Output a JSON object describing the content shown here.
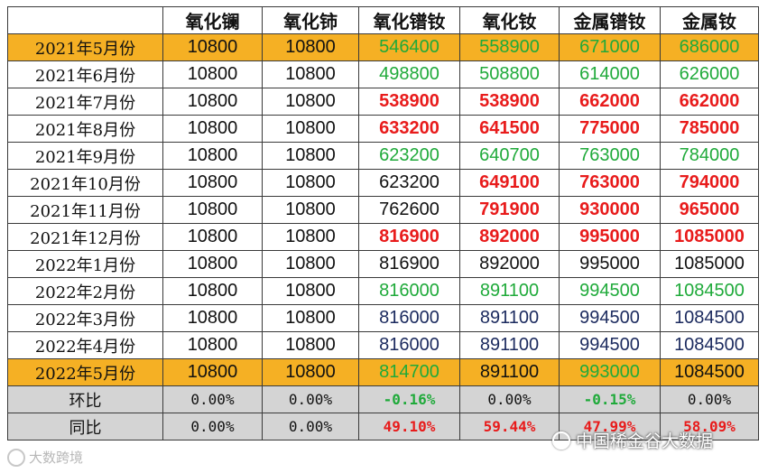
{
  "table": {
    "headers": [
      "",
      "氧化镧",
      "氧化铈",
      "氧化镨钕",
      "氧化钕",
      "金属镨钕",
      "金属钕"
    ],
    "rows": [
      {
        "label": "2021年5月份",
        "style": "hl",
        "cells": [
          {
            "v": "10800",
            "c": "black"
          },
          {
            "v": "10800",
            "c": "black"
          },
          {
            "v": "546400",
            "c": "green"
          },
          {
            "v": "558900",
            "c": "green"
          },
          {
            "v": "671000",
            "c": "green"
          },
          {
            "v": "686000",
            "c": "green"
          }
        ]
      },
      {
        "label": "2021年6月份",
        "style": "",
        "cells": [
          {
            "v": "10800",
            "c": "black"
          },
          {
            "v": "10800",
            "c": "black"
          },
          {
            "v": "498800",
            "c": "green"
          },
          {
            "v": "508800",
            "c": "green"
          },
          {
            "v": "614000",
            "c": "green"
          },
          {
            "v": "626000",
            "c": "green"
          }
        ]
      },
      {
        "label": "2021年7月份",
        "style": "",
        "cells": [
          {
            "v": "10800",
            "c": "black"
          },
          {
            "v": "10800",
            "c": "black"
          },
          {
            "v": "538900",
            "c": "red"
          },
          {
            "v": "538900",
            "c": "red"
          },
          {
            "v": "662000",
            "c": "red"
          },
          {
            "v": "662000",
            "c": "red"
          }
        ]
      },
      {
        "label": "2021年8月份",
        "style": "",
        "cells": [
          {
            "v": "10800",
            "c": "black"
          },
          {
            "v": "10800",
            "c": "black"
          },
          {
            "v": "633200",
            "c": "red"
          },
          {
            "v": "641500",
            "c": "red"
          },
          {
            "v": "775000",
            "c": "red"
          },
          {
            "v": "785000",
            "c": "red"
          }
        ]
      },
      {
        "label": "2021年9月份",
        "style": "",
        "cells": [
          {
            "v": "10800",
            "c": "black"
          },
          {
            "v": "10800",
            "c": "black"
          },
          {
            "v": "623200",
            "c": "green"
          },
          {
            "v": "640700",
            "c": "green"
          },
          {
            "v": "763000",
            "c": "green"
          },
          {
            "v": "784000",
            "c": "green"
          }
        ]
      },
      {
        "label": "2021年10月份",
        "style": "",
        "cells": [
          {
            "v": "10800",
            "c": "black"
          },
          {
            "v": "10800",
            "c": "black"
          },
          {
            "v": "623200",
            "c": "black"
          },
          {
            "v": "649100",
            "c": "red"
          },
          {
            "v": "763000",
            "c": "red"
          },
          {
            "v": "794000",
            "c": "red"
          }
        ]
      },
      {
        "label": "2021年11月份",
        "style": "",
        "cells": [
          {
            "v": "10800",
            "c": "black"
          },
          {
            "v": "10800",
            "c": "black"
          },
          {
            "v": "762600",
            "c": "black"
          },
          {
            "v": "791900",
            "c": "red"
          },
          {
            "v": "930000",
            "c": "red"
          },
          {
            "v": "965000",
            "c": "red"
          }
        ]
      },
      {
        "label": "2021年12月份",
        "style": "",
        "cells": [
          {
            "v": "10800",
            "c": "black"
          },
          {
            "v": "10800",
            "c": "black"
          },
          {
            "v": "816900",
            "c": "red"
          },
          {
            "v": "892000",
            "c": "red"
          },
          {
            "v": "995000",
            "c": "red"
          },
          {
            "v": "1085000",
            "c": "red"
          }
        ]
      },
      {
        "label": "2022年1月份",
        "style": "",
        "cells": [
          {
            "v": "10800",
            "c": "black"
          },
          {
            "v": "10800",
            "c": "black"
          },
          {
            "v": "816900",
            "c": "black"
          },
          {
            "v": "892000",
            "c": "black"
          },
          {
            "v": "995000",
            "c": "black"
          },
          {
            "v": "1085000",
            "c": "black"
          }
        ]
      },
      {
        "label": "2022年2月份",
        "style": "",
        "cells": [
          {
            "v": "10800",
            "c": "black"
          },
          {
            "v": "10800",
            "c": "black"
          },
          {
            "v": "816000",
            "c": "green"
          },
          {
            "v": "891100",
            "c": "green"
          },
          {
            "v": "994500",
            "c": "green"
          },
          {
            "v": "1084500",
            "c": "green"
          }
        ]
      },
      {
        "label": "2022年3月份",
        "style": "",
        "cells": [
          {
            "v": "10800",
            "c": "black"
          },
          {
            "v": "10800",
            "c": "black"
          },
          {
            "v": "816000",
            "c": "blue"
          },
          {
            "v": "891100",
            "c": "blue"
          },
          {
            "v": "994500",
            "c": "blue"
          },
          {
            "v": "1084500",
            "c": "blue"
          }
        ]
      },
      {
        "label": "2022年4月份",
        "style": "",
        "cells": [
          {
            "v": "10800",
            "c": "black"
          },
          {
            "v": "10800",
            "c": "black"
          },
          {
            "v": "816000",
            "c": "blue"
          },
          {
            "v": "891100",
            "c": "blue"
          },
          {
            "v": "994500",
            "c": "blue"
          },
          {
            "v": "1084500",
            "c": "blue"
          }
        ]
      },
      {
        "label": "2022年5月份",
        "style": "hl",
        "cells": [
          {
            "v": "10800",
            "c": "black"
          },
          {
            "v": "10800",
            "c": "black"
          },
          {
            "v": "814700",
            "c": "green"
          },
          {
            "v": "891100",
            "c": "black"
          },
          {
            "v": "993000",
            "c": "green"
          },
          {
            "v": "1084500",
            "c": "black"
          }
        ]
      },
      {
        "label": "环比",
        "style": "grey",
        "pct": true,
        "cells": [
          {
            "v": "0.00%",
            "c": "black"
          },
          {
            "v": "0.00%",
            "c": "black"
          },
          {
            "v": "-0.16%",
            "c": "green"
          },
          {
            "v": "0.00%",
            "c": "black"
          },
          {
            "v": "-0.15%",
            "c": "green"
          },
          {
            "v": "0.00%",
            "c": "black"
          }
        ]
      },
      {
        "label": "同比",
        "style": "grey",
        "pct": true,
        "cells": [
          {
            "v": "0.00%",
            "c": "black"
          },
          {
            "v": "0.00%",
            "c": "black"
          },
          {
            "v": "49.10%",
            "c": "red"
          },
          {
            "v": "59.44%",
            "c": "red"
          },
          {
            "v": "47.99%",
            "c": "red"
          },
          {
            "v": "58.09%",
            "c": "red"
          }
        ]
      }
    ]
  },
  "watermarks": {
    "left": "大数跨境",
    "right": "中国稀金谷大数据"
  }
}
